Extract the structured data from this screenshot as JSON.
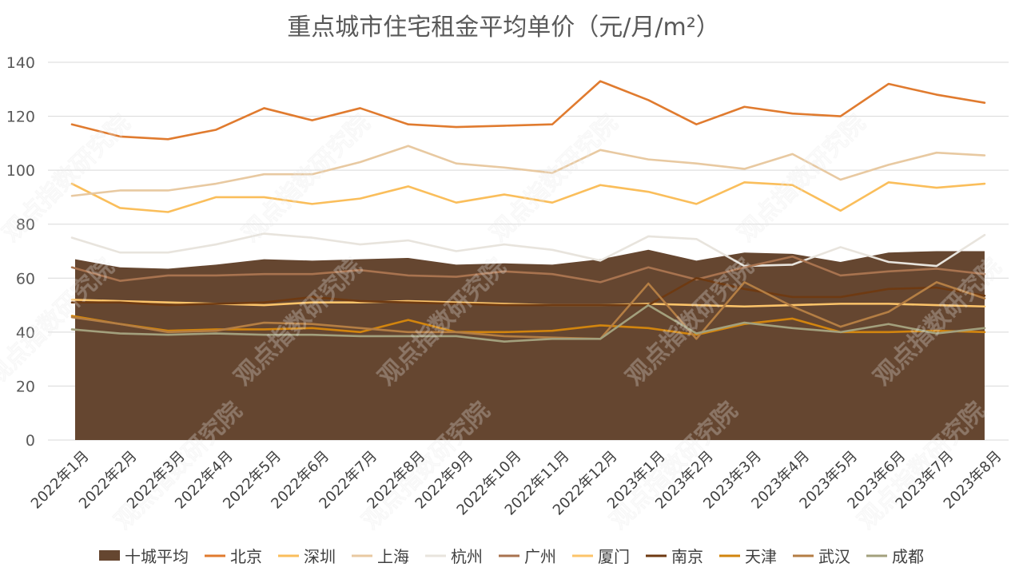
{
  "chart_data": {
    "type": "line",
    "title": "重点城市住宅租金平均单价（元/月/m²）",
    "watermark": "观点指数研究院",
    "ylim": [
      0,
      140
    ],
    "yticks": [
      0,
      20,
      40,
      60,
      80,
      100,
      120,
      140
    ],
    "grid": true,
    "legend_position": "bottom",
    "categories": [
      "2022年1月",
      "2022年2月",
      "2022年3月",
      "2022年4月",
      "2022年5月",
      "2022年6月",
      "2022年7月",
      "2022年8月",
      "2022年9月",
      "2022年10月",
      "2022年11月",
      "2022年12月",
      "2023年1月",
      "2023年2月",
      "2023年3月",
      "2023年4月",
      "2023年5月",
      "2023年6月",
      "2023年7月",
      "2023年8月"
    ],
    "area_series": {
      "name": "十城平均",
      "color": "#654630",
      "values": [
        67,
        64,
        63.5,
        65,
        67,
        66.5,
        67,
        67.5,
        65,
        65.5,
        65,
        67,
        70.5,
        66.5,
        69.5,
        69,
        66,
        69.5,
        70,
        70
      ]
    },
    "series": [
      {
        "name": "北京",
        "color": "#E07B2F",
        "values": [
          117,
          112.5,
          111.5,
          115,
          123,
          118.5,
          123,
          117,
          116,
          116.5,
          117,
          133,
          126,
          117,
          123.5,
          121,
          120,
          132,
          128,
          125
        ]
      },
      {
        "name": "深圳",
        "color": "#FABE5B",
        "values": [
          95,
          86,
          84.5,
          90,
          90,
          87.5,
          89.5,
          94,
          88,
          91,
          88,
          94.5,
          92,
          87.5,
          95.5,
          94.5,
          85,
          95.5,
          93.5,
          95
        ]
      },
      {
        "name": "上海",
        "color": "#E8C9A1",
        "values": [
          90.5,
          92.5,
          92.5,
          95,
          98.5,
          98.5,
          103,
          109,
          102.5,
          101,
          99,
          107.5,
          104,
          102.5,
          100.5,
          106,
          96.5,
          102,
          106.5,
          105.5
        ]
      },
      {
        "name": "杭州",
        "color": "#E8E4DD",
        "values": [
          75,
          69.5,
          69.5,
          72.5,
          76.5,
          75,
          72.5,
          74,
          70,
          72.5,
          70.5,
          66.5,
          75.5,
          74.5,
          64.5,
          65,
          71.5,
          66,
          64.5,
          76
        ]
      },
      {
        "name": "广州",
        "color": "#A8734F",
        "values": [
          64,
          59,
          61,
          61,
          61.5,
          61.5,
          63,
          61,
          60.5,
          62.5,
          61.5,
          58.5,
          64,
          59.5,
          64,
          68,
          61,
          62.5,
          63.5,
          61.5
        ]
      },
      {
        "name": "厦门",
        "color": "#FCC46A",
        "values": [
          52,
          51.5,
          51,
          50.5,
          50,
          51,
          51,
          51.5,
          51,
          50.5,
          50,
          50,
          50.5,
          50,
          49.5,
          50,
          50.5,
          50.5,
          50,
          49.5
        ]
      },
      {
        "name": "南京",
        "color": "#6E3A12",
        "values": [
          51,
          51,
          50,
          50.5,
          51,
          53,
          51.5,
          51,
          50.5,
          50,
          50,
          50,
          50,
          60,
          56,
          53,
          53,
          56,
          56.5,
          53.5
        ]
      },
      {
        "name": "天津",
        "color": "#D2850E",
        "values": [
          46,
          43,
          40.5,
          41,
          41,
          41.5,
          40,
          44.5,
          40,
          40,
          40.5,
          42.5,
          41.5,
          39,
          43,
          45,
          40,
          40,
          40.5,
          40
        ]
      },
      {
        "name": "武汉",
        "color": "#B47E44",
        "values": [
          45.5,
          43,
          40,
          40.5,
          43.5,
          43,
          41.5,
          40,
          40,
          38.5,
          38,
          37.5,
          58,
          37.5,
          58.5,
          49.5,
          42,
          47.5,
          58.5,
          52.5
        ]
      },
      {
        "name": "成都",
        "color": "#A3A07D",
        "values": [
          41,
          39.5,
          39,
          39.5,
          39,
          39,
          38.5,
          38.5,
          38.5,
          36.5,
          37.5,
          37.5,
          50,
          39.5,
          43.5,
          41.5,
          40,
          43,
          39.5,
          41.5
        ]
      }
    ]
  }
}
